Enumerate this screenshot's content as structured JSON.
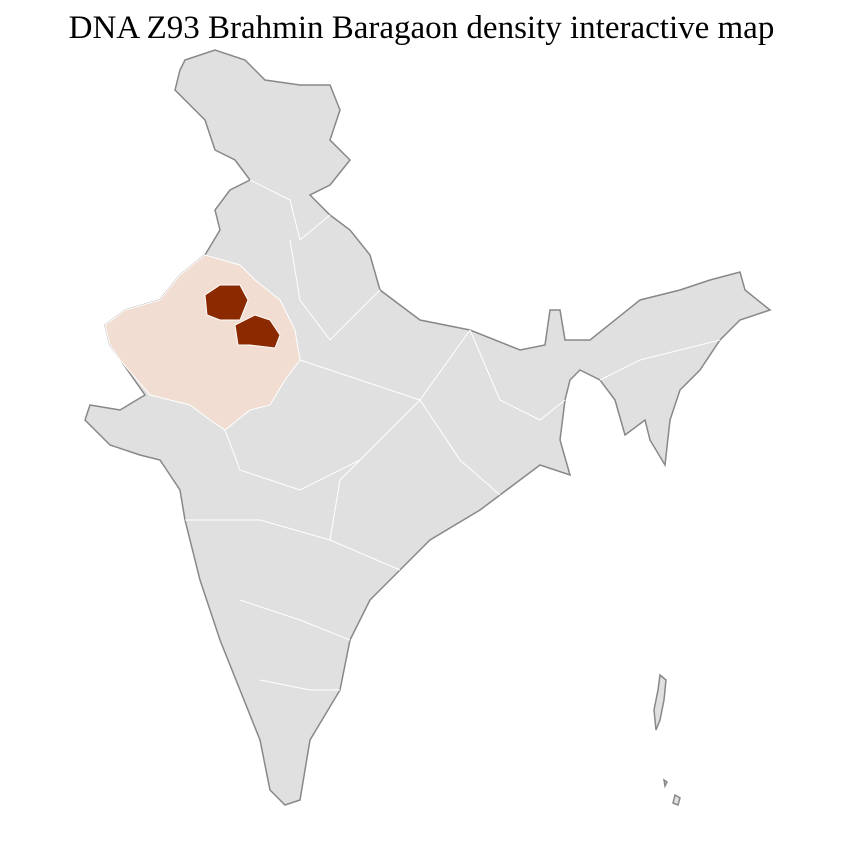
{
  "title": "DNA Z93 Brahmin Baragaon density interactive map"
}
